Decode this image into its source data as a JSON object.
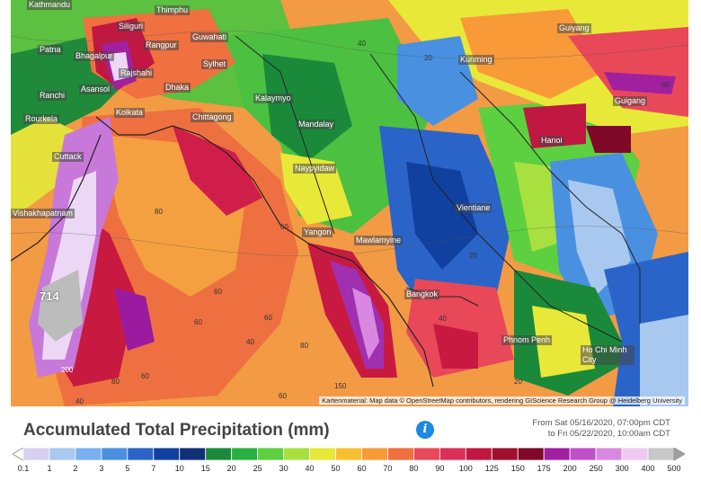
{
  "map": {
    "max_label": "714",
    "attribution": "Kartenmaterial: Map data © OpenStreetMap contributors, rendering GIScience Research Group @ Heidelberg University",
    "cities": [
      {
        "name": "Kathmandu"
      },
      {
        "name": "Thimphu"
      },
      {
        "name": "Siliguri"
      },
      {
        "name": "Guwahati"
      },
      {
        "name": "Rangpur"
      },
      {
        "name": "Patna"
      },
      {
        "name": "Bhagalpur"
      },
      {
        "name": "Rajshahi"
      },
      {
        "name": "Sylhet"
      },
      {
        "name": "Ranchi"
      },
      {
        "name": "Asansol"
      },
      {
        "name": "Dhaka"
      },
      {
        "name": "Kolkata"
      },
      {
        "name": "Rourkela"
      },
      {
        "name": "Chittagong"
      },
      {
        "name": "Kalaymyo"
      },
      {
        "name": "Mandalay"
      },
      {
        "name": "Cuttack"
      },
      {
        "name": "Naypyidaw"
      },
      {
        "name": "Vientiane"
      },
      {
        "name": "Yangon"
      },
      {
        "name": "Mawlamyine"
      },
      {
        "name": "Bangkok"
      },
      {
        "name": "Phnom Penh"
      },
      {
        "name": "Ho Chi Minh City"
      },
      {
        "name": "Kunming"
      },
      {
        "name": "Guiyang"
      },
      {
        "name": "Guigang"
      },
      {
        "name": "Hanoi"
      },
      {
        "name": "Vishakhapatnam"
      }
    ],
    "contour_labels": [
      "80",
      "80",
      "60",
      "60",
      "60",
      "60",
      "200",
      "60",
      "40",
      "40",
      "150",
      "80",
      "60",
      "20",
      "20",
      "40",
      "20",
      "80",
      "40"
    ]
  },
  "footer": {
    "title": "Accumulated Total Precipitation (mm)",
    "info_icon": "info-icon",
    "date_from": "From Sat 05/16/2020, 07:00pm CDT",
    "date_to": "to Fri 05/22/2020, 10:00am CDT"
  },
  "legend": {
    "ticks": [
      "0.1",
      "1",
      "2",
      "3",
      "5",
      "7",
      "10",
      "15",
      "20",
      "25",
      "30",
      "40",
      "50",
      "60",
      "70",
      "80",
      "90",
      "100",
      "125",
      "150",
      "175",
      "200",
      "250",
      "300",
      "400",
      "500"
    ],
    "colors": [
      "#d8d0f0",
      "#a8c8f0",
      "#78b0f0",
      "#4a90e0",
      "#2a64c8",
      "#1040a0",
      "#103078",
      "#1a8a3a",
      "#2ab040",
      "#5cd040",
      "#a8e040",
      "#e8e838",
      "#f8c030",
      "#f89a38",
      "#f07040",
      "#e84858",
      "#d83058",
      "#c01840",
      "#a01030",
      "#800828",
      "#a020a0",
      "#c050c8",
      "#d888e0",
      "#f0c8f0",
      "#c8c8c8"
    ]
  }
}
